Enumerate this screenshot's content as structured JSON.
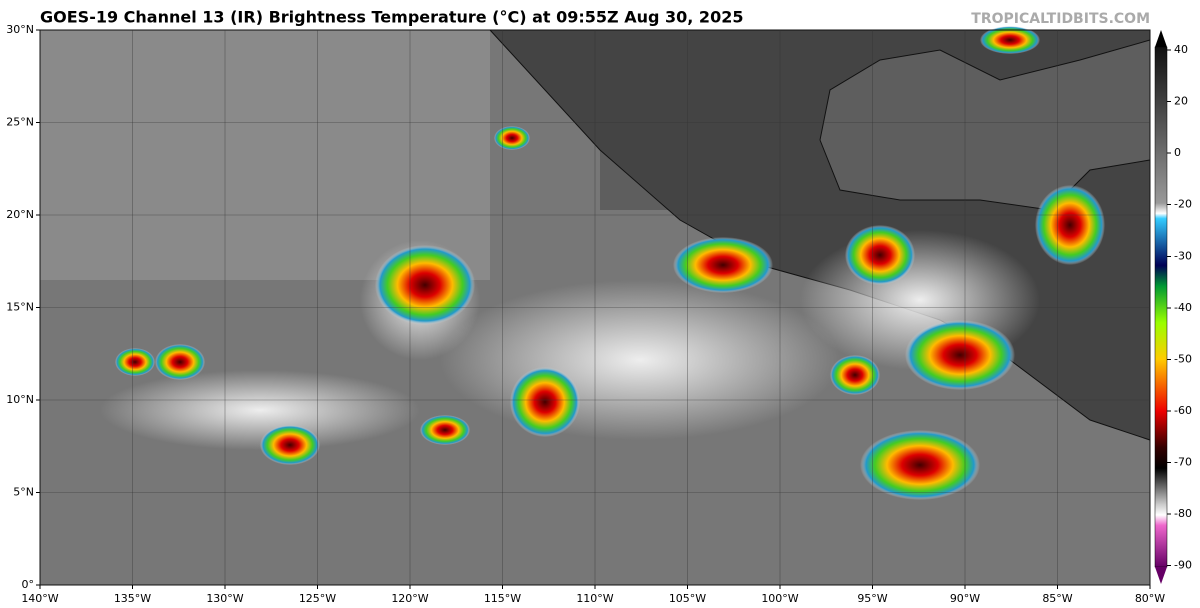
{
  "title": "GOES-19 Channel 13 (IR) Brightness Temperature (°C) at 09:55Z Aug 30, 2025",
  "credit": "TROPICALTIDBITS.COM",
  "map": {
    "lat_labels": [
      "0°",
      "5°N",
      "10°N",
      "15°N",
      "20°N",
      "25°N",
      "30°N"
    ],
    "lon_labels": [
      "140°W",
      "135°W",
      "130°W",
      "125°W",
      "120°W",
      "115°W",
      "110°W",
      "105°W",
      "100°W",
      "95°W",
      "90°W",
      "85°W",
      "80°W"
    ]
  },
  "colorbar": {
    "ticks": [
      40,
      20,
      0,
      -20,
      -30,
      -40,
      -50,
      -60,
      -70,
      -80,
      -90
    ]
  }
}
